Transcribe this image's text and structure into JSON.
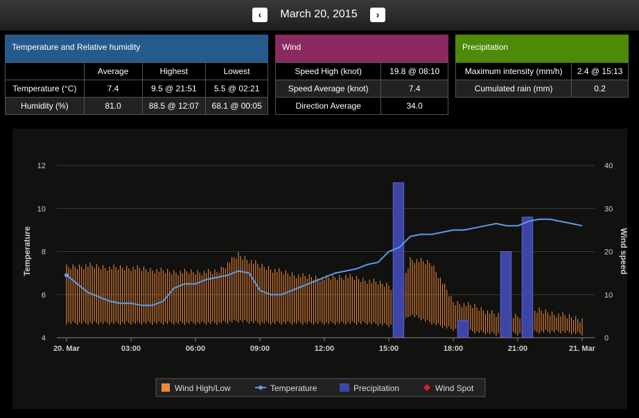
{
  "header": {
    "date": "March 20, 2015",
    "prev_icon": "‹",
    "next_icon": "›"
  },
  "temp_panel": {
    "title": "Temperature and Relative humidity",
    "color": "#245b8c",
    "columns": [
      "",
      "Average",
      "Highest",
      "Lowest"
    ],
    "rows": [
      [
        "Temperature (°C)",
        "7.4",
        "9.5 @ 21:51",
        "5.5 @ 02:21"
      ],
      [
        "Humidity (%)",
        "81.0",
        "88.5 @ 12:07",
        "68.1 @ 00:05"
      ]
    ]
  },
  "wind_panel": {
    "title": "Wind",
    "color": "#8a2a5e",
    "rows": [
      [
        "Speed High (knot)",
        "19.8 @ 08:10"
      ],
      [
        "Speed Average (knot)",
        "7.4"
      ],
      [
        "Direction Average",
        "34.0"
      ]
    ]
  },
  "precip_panel": {
    "title": "Precipitation",
    "color": "#4c8a07",
    "rows": [
      [
        "Maximum intensity (mm/h)",
        "2.4 @ 15:13"
      ],
      [
        "Cumulated rain (mm)",
        "0.2"
      ]
    ]
  },
  "chart_data": {
    "type": "line",
    "xlabel": "",
    "ylabel": "Temperature",
    "y2label": "Wind speed",
    "x_ticks": [
      "20. Mar",
      "03:00",
      "06:00",
      "09:00",
      "12:00",
      "15:00",
      "18:00",
      "21:00",
      "21. Mar"
    ],
    "x_range_hours": [
      0,
      24
    ],
    "ylim": [
      4,
      12
    ],
    "y_ticks": [
      "4",
      "6",
      "8",
      "10",
      "12"
    ],
    "y2lim": [
      0,
      40
    ],
    "y2_ticks": [
      "0",
      "10",
      "20",
      "30",
      "40"
    ],
    "grid": true,
    "colors": {
      "temperature": "#5b9cf0",
      "wind": "#f0883a",
      "precip": "#3d46a6",
      "spot": "#e02020"
    },
    "legend": [
      "Wind High/Low",
      "Temperature",
      "Precipitation",
      "Wind Spot"
    ],
    "temperature": {
      "hours": [
        0,
        0.5,
        1,
        1.5,
        2,
        2.5,
        3,
        3.5,
        4,
        4.5,
        5,
        5.5,
        6,
        6.5,
        7,
        7.5,
        8,
        8.5,
        9,
        9.5,
        10,
        10.5,
        11,
        11.5,
        12,
        12.5,
        13,
        13.5,
        14,
        14.5,
        15,
        15.5,
        16,
        16.5,
        17,
        17.5,
        18,
        18.5,
        19,
        19.5,
        20,
        20.5,
        21,
        21.5,
        22,
        22.5,
        23,
        23.5,
        24
      ],
      "values": [
        6.9,
        6.5,
        6.1,
        5.9,
        5.7,
        5.6,
        5.6,
        5.5,
        5.5,
        5.7,
        6.3,
        6.5,
        6.5,
        6.7,
        6.8,
        6.9,
        7.1,
        7.0,
        6.2,
        6.0,
        6.0,
        6.2,
        6.4,
        6.6,
        6.8,
        7.0,
        7.1,
        7.2,
        7.4,
        7.5,
        8.0,
        8.2,
        8.7,
        8.8,
        8.8,
        8.9,
        9.0,
        9.0,
        9.1,
        9.2,
        9.3,
        9.2,
        9.2,
        9.4,
        9.5,
        9.5,
        9.4,
        9.3,
        9.2
      ]
    },
    "wind_high_low": {
      "hours": [
        0,
        1,
        2,
        3,
        4,
        5,
        6,
        7,
        8,
        9,
        10,
        11,
        12,
        13,
        14,
        15,
        15.5,
        16,
        17,
        18,
        19,
        20,
        21,
        22,
        23,
        24
      ],
      "high": [
        17,
        17.5,
        17,
        17,
        16.5,
        16,
        16,
        16,
        20,
        17.5,
        16,
        15,
        14.5,
        15,
        14,
        13,
        11,
        19,
        18,
        9,
        8,
        6,
        5.5,
        7,
        6,
        5
      ],
      "low": [
        3,
        3,
        3,
        3,
        3,
        3,
        3,
        3,
        3.5,
        3,
        3,
        3,
        3,
        3,
        3,
        2.5,
        2,
        5,
        3,
        1.5,
        1,
        0.5,
        0.5,
        1,
        1,
        0.5
      ]
    },
    "precipitation": [
      {
        "start": 15.2,
        "end": 15.7,
        "value": 36
      },
      {
        "start": 18.2,
        "end": 18.7,
        "value": 4
      },
      {
        "start": 20.2,
        "end": 20.7,
        "value": 20
      },
      {
        "start": 21.2,
        "end": 21.7,
        "value": 28
      }
    ]
  }
}
